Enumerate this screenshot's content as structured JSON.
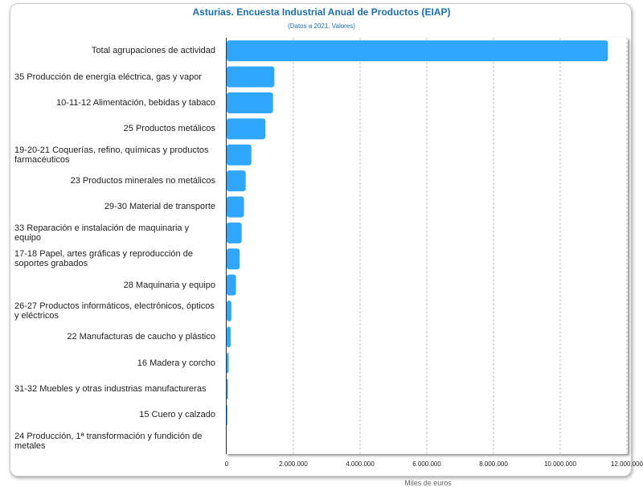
{
  "chart_data": {
    "type": "bar",
    "orientation": "horizontal",
    "title": "Asturias. Encuesta Industrial Anual de Productos (EIAP)",
    "subtitle": "(Datos a 2021. Valores)",
    "xlabel": "Miles de euros",
    "ylabel": "",
    "xlim": [
      0,
      12000000
    ],
    "x_ticks": [
      "0",
      "2.000.000",
      "4.000.000",
      "6.000.000",
      "8.000.000",
      "10.000.000",
      "12.000.000"
    ],
    "x_tick_values": [
      0,
      2000000,
      4000000,
      6000000,
      8000000,
      10000000,
      12000000
    ],
    "grid": true,
    "legend": "none",
    "bar_color": "#2fa7ff",
    "categories": [
      "Total agrupaciones de actividad",
      "35 Producción de energía eléctrica, gas y vapor",
      "10-11-12 Alimentación, bebidas y tabaco",
      "25 Productos metálicos",
      "19-20-21 Coquerías, refino, químicas y productos farmacéuticos",
      "23 Productos minerales no metálicos",
      "29-30 Material de transporte",
      "33 Reparación e instalación de maquinaria y equipo",
      "17-18 Papel, artes gráficas y reproducción de soportes grabados",
      "28 Maquinaria y equipo",
      "26-27 Productos informáticos, electrónicos, ópticos y eléctricos",
      "22 Manufacturas de caucho y plástico",
      "16 Madera y corcho",
      "31-32 Muebles y otras industrias manufactureras",
      "15 Cuero y calzado",
      "24 Producción, 1ª transformación y fundición de metales"
    ],
    "values": [
      11430000,
      1430000,
      1390000,
      1160000,
      740000,
      570000,
      520000,
      450000,
      390000,
      280000,
      140000,
      120000,
      60000,
      40000,
      5000,
      0
    ]
  }
}
